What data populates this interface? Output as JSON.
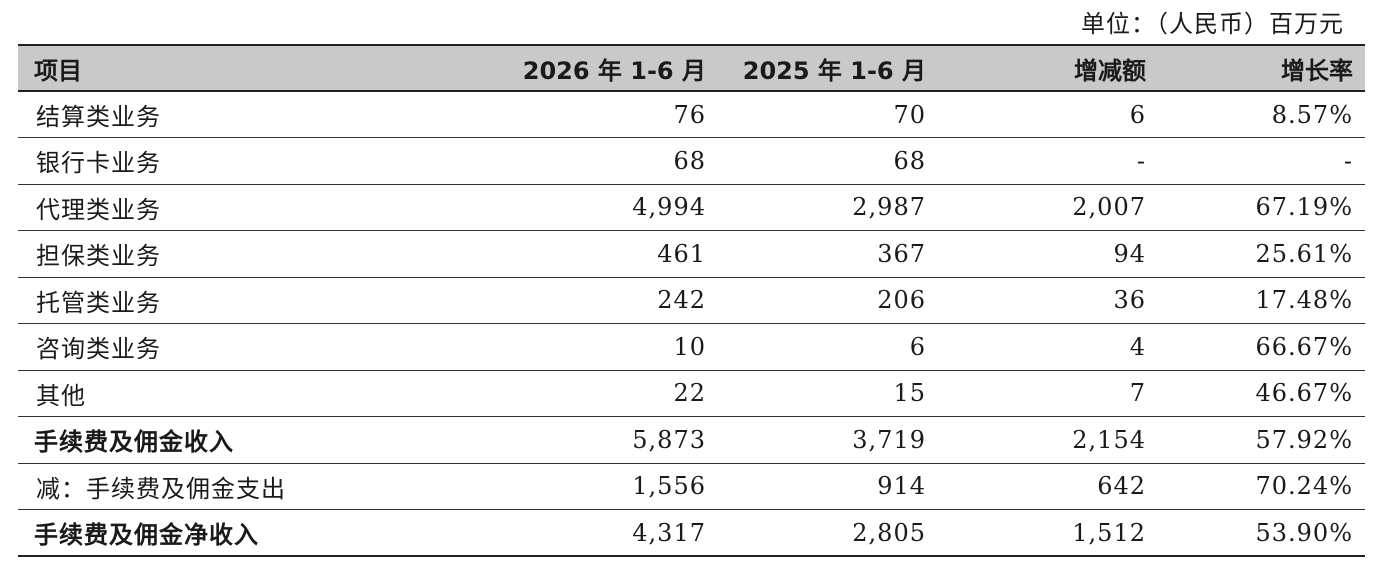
{
  "unit_label": "单位：（人民币）百万元",
  "table": {
    "headers": [
      "项目",
      "2026 年 1-6 月",
      "2025 年 1-6 月",
      "增减额",
      "增长率"
    ],
    "rows": [
      {
        "label": "结算类业务",
        "v2026": "76",
        "v2025": "70",
        "change": "6",
        "rate": "8.57%",
        "bold": false
      },
      {
        "label": "银行卡业务",
        "v2026": "68",
        "v2025": "68",
        "change": "-",
        "rate": "-",
        "bold": false
      },
      {
        "label": "代理类业务",
        "v2026": "4,994",
        "v2025": "2,987",
        "change": "2,007",
        "rate": "67.19%",
        "bold": false
      },
      {
        "label": "担保类业务",
        "v2026": "461",
        "v2025": "367",
        "change": "94",
        "rate": "25.61%",
        "bold": false
      },
      {
        "label": "托管类业务",
        "v2026": "242",
        "v2025": "206",
        "change": "36",
        "rate": "17.48%",
        "bold": false
      },
      {
        "label": "咨询类业务",
        "v2026": "10",
        "v2025": "6",
        "change": "4",
        "rate": "66.67%",
        "bold": false
      },
      {
        "label": "其他",
        "v2026": "22",
        "v2025": "15",
        "change": "7",
        "rate": "46.67%",
        "bold": false
      },
      {
        "label": "手续费及佣金收入",
        "v2026": "5,873",
        "v2025": "3,719",
        "change": "2,154",
        "rate": "57.92%",
        "bold": true
      },
      {
        "label": "减：手续费及佣金支出",
        "v2026": "1,556",
        "v2025": "914",
        "change": "642",
        "rate": "70.24%",
        "bold": false
      },
      {
        "label": "手续费及佣金净收入",
        "v2026": "4,317",
        "v2025": "2,805",
        "change": "1,512",
        "rate": "53.90%",
        "bold": true
      }
    ]
  },
  "colors": {
    "header_background": "#c9c9c9",
    "rule_color": "#222222",
    "text_color": "#1a1a1a"
  }
}
